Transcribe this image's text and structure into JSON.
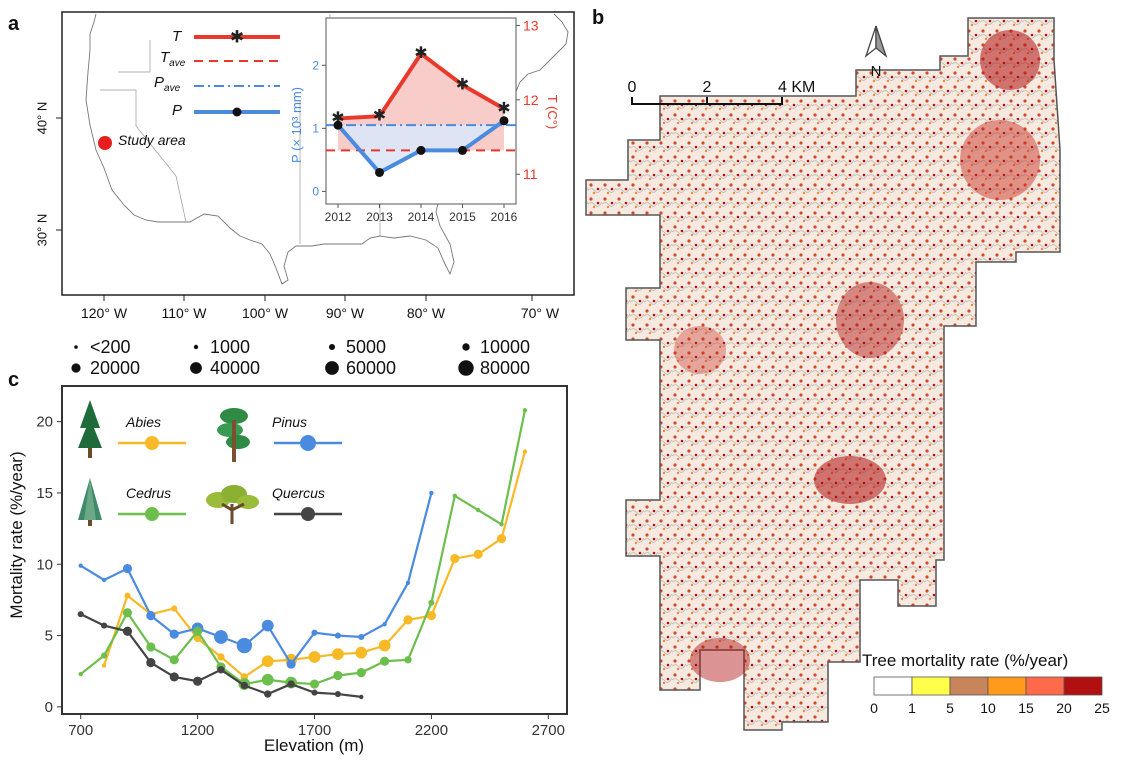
{
  "panel_labels": {
    "a": "a",
    "b": "b",
    "c": "c"
  },
  "colors": {
    "temperature": "#e8392c",
    "precipitation": "#4a8be0",
    "abies": "#f7b925",
    "pinus": "#4a8be0",
    "cedrus": "#6cbf4d",
    "quercus": "#444444",
    "study_area": "#e81e1e"
  },
  "map_a": {
    "lat_ticks": [
      "40° N",
      "30° N"
    ],
    "lon_ticks": [
      "120° W",
      "110° W",
      "100° W",
      "90° W",
      "80° W",
      "70° W"
    ],
    "study_area_label": "Study area"
  },
  "legend_a": {
    "items": [
      {
        "main": "T",
        "sub": ""
      },
      {
        "main": "T",
        "sub": "ave"
      },
      {
        "main": "P",
        "sub": "ave"
      },
      {
        "main": "P",
        "sub": ""
      }
    ]
  },
  "inset_chart": {
    "left_axis_label": "P (× 10³ mm)",
    "right_axis_label": "T (C°)",
    "left_ticks": [
      "0",
      "1",
      "2"
    ],
    "right_ticks": [
      "11",
      "12",
      "13"
    ],
    "x_ticks": [
      "2012",
      "2013",
      "2014",
      "2015",
      "2016"
    ]
  },
  "chart_data": [
    {
      "type": "line",
      "title": "",
      "x": [
        2012,
        2013,
        2014,
        2015,
        2016
      ],
      "series": [
        {
          "name": "T",
          "axis": "right",
          "values": [
            11.75,
            11.78,
            12.62,
            12.2,
            11.88
          ],
          "marker": "asterisk"
        },
        {
          "name": "P",
          "axis": "left",
          "values": [
            1.05,
            0.3,
            0.65,
            0.65,
            1.12
          ],
          "marker": "dot"
        }
      ],
      "reference_lines": [
        {
          "name": "T_ave",
          "axis": "right",
          "value": 11.32,
          "style": "dashed"
        },
        {
          "name": "P_ave",
          "axis": "left",
          "value": 1.05,
          "style": "dash-dot"
        }
      ],
      "ylim_left": [
        -0.2,
        2.75
      ],
      "ylim_right": [
        10.6,
        13.1
      ],
      "ylabel_left": "P (× 10³ mm)",
      "ylabel_right": "T (C°)"
    },
    {
      "type": "line",
      "title": "",
      "xlabel": "Elevation (m)",
      "ylabel": "Mortality rate (%/year)",
      "xlim": [
        620,
        2780
      ],
      "ylim": [
        -0.5,
        22.5
      ],
      "x_ticks": [
        700,
        1200,
        1700,
        2200,
        2700
      ],
      "y_ticks": [
        0,
        5,
        10,
        15,
        20
      ],
      "series": [
        {
          "name": "Abies",
          "x": [
            800,
            900,
            1000,
            1100,
            1200,
            1300,
            1400,
            1500,
            1600,
            1700,
            1800,
            1900,
            2000,
            2100,
            2200,
            2300,
            2400,
            2500,
            2600
          ],
          "values": [
            2.9,
            7.8,
            6.5,
            6.9,
            4.8,
            3.5,
            2.1,
            3.2,
            3.3,
            3.5,
            3.7,
            3.8,
            4.3,
            6.1,
            6.4,
            10.4,
            10.7,
            11.8,
            17.9
          ],
          "sizes": [
            1000,
            5000,
            5000,
            5000,
            10000,
            10000,
            10000,
            40000,
            40000,
            40000,
            40000,
            40000,
            40000,
            20000,
            20000,
            20000,
            20000,
            20000,
            1000
          ]
        },
        {
          "name": "Pinus",
          "x": [
            700,
            800,
            900,
            1000,
            1100,
            1200,
            1300,
            1400,
            1500,
            1600,
            1700,
            1800,
            1900,
            2000,
            2100,
            2200
          ],
          "values": [
            9.9,
            8.9,
            9.7,
            6.4,
            5.1,
            5.5,
            4.9,
            4.3,
            5.7,
            3.0,
            5.2,
            5.0,
            4.9,
            5.8,
            8.7,
            15.0
          ],
          "sizes": [
            1000,
            1000,
            20000,
            20000,
            20000,
            40000,
            60000,
            80000,
            40000,
            20000,
            5000,
            5000,
            5000,
            1000,
            1000,
            1000
          ]
        },
        {
          "name": "Cedrus",
          "x": [
            700,
            800,
            900,
            1000,
            1100,
            1200,
            1300,
            1400,
            1500,
            1600,
            1700,
            1800,
            1900,
            2000,
            2100,
            2200,
            2300,
            2400,
            2500,
            2600
          ],
          "values": [
            2.3,
            3.6,
            6.6,
            4.2,
            3.3,
            5.3,
            2.8,
            1.6,
            1.9,
            1.7,
            1.6,
            2.2,
            2.4,
            3.2,
            3.3,
            7.3,
            14.8,
            13.8,
            12.8,
            20.8
          ],
          "sizes": [
            1000,
            5000,
            20000,
            20000,
            20000,
            20000,
            20000,
            40000,
            40000,
            40000,
            20000,
            20000,
            20000,
            20000,
            10000,
            5000,
            1000,
            1000,
            1000,
            1000
          ]
        },
        {
          "name": "Quercus",
          "x": [
            700,
            800,
            900,
            1000,
            1100,
            1200,
            1300,
            1400,
            1500,
            1600,
            1700,
            1800,
            1900
          ],
          "values": [
            6.5,
            5.7,
            5.3,
            3.1,
            2.1,
            1.8,
            2.6,
            1.5,
            0.9,
            1.6,
            1.0,
            0.9,
            0.7
          ],
          "sizes": [
            5000,
            5000,
            20000,
            20000,
            20000,
            20000,
            10000,
            10000,
            10000,
            10000,
            5000,
            5000,
            1000
          ]
        }
      ]
    }
  ],
  "size_legend": {
    "entries": [
      {
        "label": "<200",
        "value": 200
      },
      {
        "label": "1000",
        "value": 1000
      },
      {
        "label": "5000",
        "value": 5000
      },
      {
        "label": "10000",
        "value": 10000
      },
      {
        "label": "20000",
        "value": 20000
      },
      {
        "label": "40000",
        "value": 40000
      },
      {
        "label": "60000",
        "value": 60000
      },
      {
        "label": "80000",
        "value": 80000
      }
    ]
  },
  "map_b": {
    "north_label": "N",
    "scale_ticks": [
      "0",
      "2",
      "4 KM"
    ],
    "legend_title": "Tree mortality rate (%/year)",
    "legend_colors": [
      "#ffffff",
      "#ffff4a",
      "#c8845a",
      "#ff9a1a",
      "#ff6a4a",
      "#b01010"
    ],
    "legend_breaks": [
      "0",
      "1",
      "5",
      "10",
      "15",
      "20",
      "25"
    ]
  }
}
